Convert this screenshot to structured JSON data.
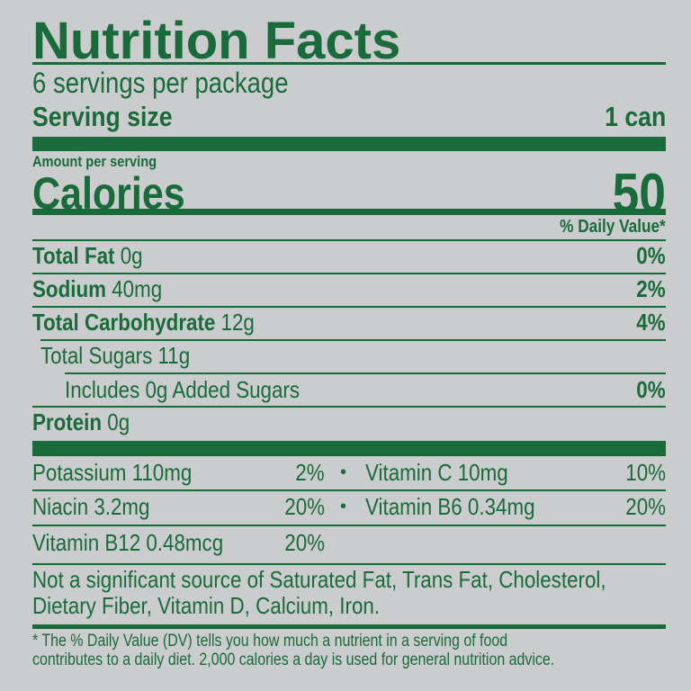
{
  "title": "Nutrition Facts",
  "servings_per_package": "6 servings per package",
  "serving_size": {
    "label": "Serving size",
    "value": "1 can"
  },
  "amount_per_serving": "Amount per serving",
  "calories": {
    "label": "Calories",
    "value": "50"
  },
  "daily_value_header": "% Daily Value*",
  "nutrients": [
    {
      "name": "Total Fat",
      "amount": "0g",
      "dv": "0%"
    },
    {
      "name": "Sodium",
      "amount": "40mg",
      "dv": "2%"
    },
    {
      "name": "Total Carbohydrate",
      "amount": "12g",
      "dv": "4%"
    },
    {
      "name": "Total Sugars 11g",
      "amount": "",
      "dv": ""
    },
    {
      "name": "Includes 0g Added Sugars",
      "amount": "",
      "dv": "0%"
    },
    {
      "name": "Protein",
      "amount": "0g",
      "dv": ""
    }
  ],
  "vitamins": [
    {
      "left": {
        "name": "Potassium 110mg",
        "dv": "2%"
      },
      "bullet": "•",
      "right": {
        "name": "Vitamin C 10mg",
        "dv": "10%"
      }
    },
    {
      "left": {
        "name": "Niacin 3.2mg",
        "dv": "20%"
      },
      "bullet": "•",
      "right": {
        "name": "Vitamin B6 0.34mg",
        "dv": "20%"
      }
    },
    {
      "left": {
        "name": "Vitamin B12 0.48mcg",
        "dv": "20%"
      }
    }
  ],
  "not_significant": [
    "Not a significant source of Saturated Fat, Trans Fat, Cholesterol,",
    "Dietary Fiber, Vitamin D, Calcium, Iron."
  ],
  "footnote": [
    "* The % Daily Value (DV) tells you how much a nutrient in a serving of food",
    "contributes to a daily diet. 2,000 calories a day is used for general nutrition advice."
  ],
  "colors": {
    "text": "#1a6b3c",
    "background": "#cbcccd"
  }
}
